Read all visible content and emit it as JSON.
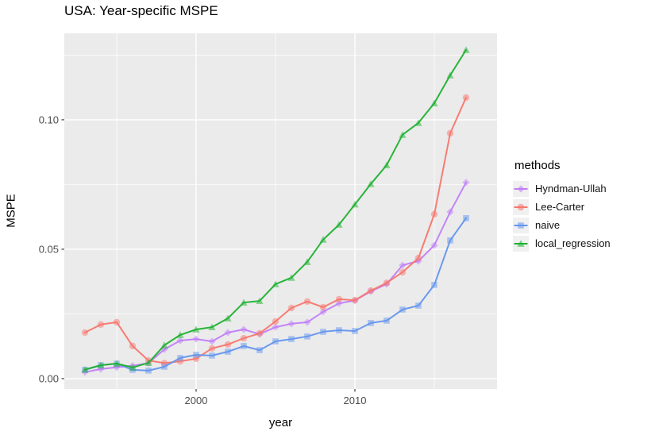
{
  "title": "USA: Year-specific MSPE",
  "chart_data": {
    "type": "line",
    "title": "USA: Year-specific MSPE",
    "xlabel": "year",
    "ylabel": "MSPE",
    "legend_title": "methods",
    "legend_position": "right",
    "grid": true,
    "panel_bg": "#EBEBEB",
    "grid_color": "#FFFFFF",
    "tick_label_color": "#4D4D4D",
    "xlim": [
      1991.7,
      2018.95
    ],
    "ylim": [
      -0.004,
      0.1334
    ],
    "x_ticks": [
      2000,
      2010
    ],
    "x_tick_labels": [
      "2000",
      "2010"
    ],
    "x_minor_gridlines": [
      1995,
      2005,
      2015
    ],
    "y_ticks": [
      0.0,
      0.05,
      0.1
    ],
    "y_tick_labels": [
      "0.00",
      "0.05",
      "0.10"
    ],
    "y_minor_gridlines": [
      0.025,
      0.075,
      0.125
    ],
    "x": [
      1993,
      1994,
      1995,
      1996,
      1997,
      1998,
      1999,
      2000,
      2001,
      2002,
      2003,
      2004,
      2005,
      2006,
      2007,
      2008,
      2009,
      2010,
      2011,
      2012,
      2013,
      2014,
      2015,
      2016,
      2017
    ],
    "series": [
      {
        "name": "Hyndman-Ullah",
        "color": "#C07EF8",
        "marker": "diamond",
        "values": [
          0.0025,
          0.0037,
          0.0044,
          0.005,
          0.006,
          0.0113,
          0.0147,
          0.0153,
          0.0144,
          0.0178,
          0.019,
          0.0172,
          0.0199,
          0.0212,
          0.0218,
          0.0258,
          0.0291,
          0.0302,
          0.0337,
          0.0365,
          0.0438,
          0.0454,
          0.0515,
          0.0644,
          0.0758
        ]
      },
      {
        "name": "Lee-Carter",
        "color": "#F8766D",
        "marker": "circle",
        "values": [
          0.0178,
          0.0209,
          0.0218,
          0.0126,
          0.007,
          0.006,
          0.0067,
          0.0077,
          0.0117,
          0.0132,
          0.0156,
          0.0175,
          0.0221,
          0.0273,
          0.0298,
          0.0276,
          0.0307,
          0.0303,
          0.034,
          0.037,
          0.0411,
          0.0466,
          0.0635,
          0.0948,
          0.1086
        ]
      },
      {
        "name": "naive",
        "color": "#6495ED",
        "marker": "square",
        "values": [
          0.0034,
          0.0052,
          0.0058,
          0.0034,
          0.0031,
          0.0046,
          0.008,
          0.0092,
          0.0089,
          0.0104,
          0.0126,
          0.011,
          0.0144,
          0.0153,
          0.0163,
          0.0181,
          0.0187,
          0.0184,
          0.0215,
          0.0224,
          0.0267,
          0.0282,
          0.0362,
          0.0534,
          0.062
        ]
      },
      {
        "name": "local_regression",
        "color": "#1EB130",
        "marker": "triangle",
        "values": [
          0.0035,
          0.0052,
          0.0058,
          0.0043,
          0.0061,
          0.0129,
          0.0169,
          0.019,
          0.0199,
          0.0233,
          0.0294,
          0.03,
          0.0365,
          0.039,
          0.0451,
          0.0537,
          0.0595,
          0.0673,
          0.0752,
          0.0825,
          0.0942,
          0.0988,
          0.1064,
          0.1172,
          0.127
        ]
      }
    ]
  }
}
